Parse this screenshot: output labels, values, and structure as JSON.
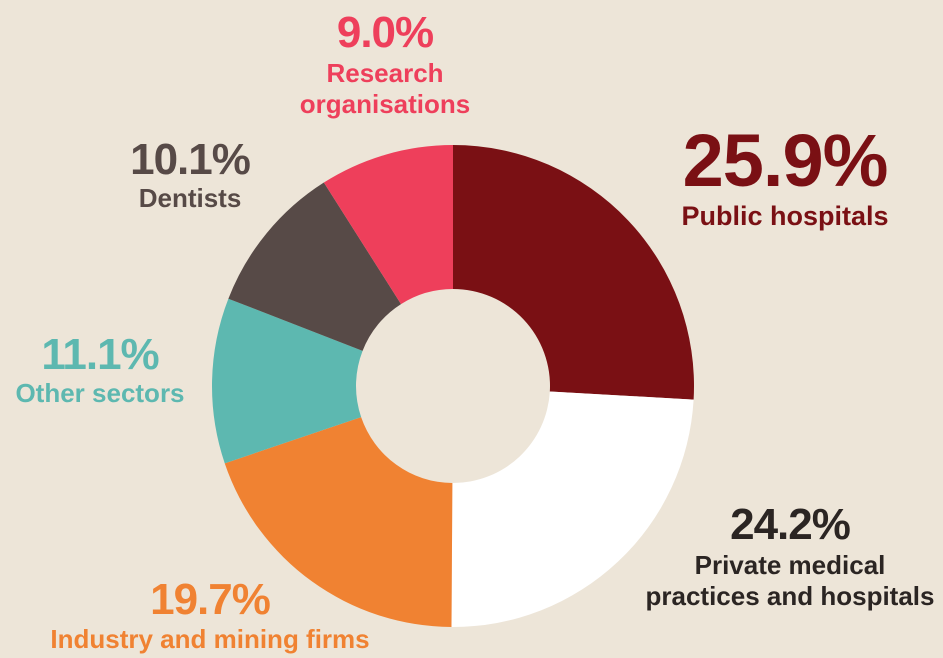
{
  "chart_data": {
    "type": "donut",
    "categories": [
      "Public hospitals",
      "Private medical practices and hospitals",
      "Industry and mining firms",
      "Other sectors",
      "Dentists",
      "Research organisations"
    ],
    "values": [
      25.9,
      24.2,
      19.7,
      11.1,
      10.1,
      9.0
    ],
    "value_labels": [
      "25.9%",
      "24.2%",
      "19.7%",
      "11.1%",
      "10.1%",
      "9.0%"
    ],
    "colors": [
      "#7a1014",
      "#ffffff",
      "#f08232",
      "#5db8b0",
      "#574a47",
      "#ee3f5b"
    ],
    "label_colors": [
      "#7a1014",
      "#2b2523",
      "#f08232",
      "#5db8b0",
      "#574a47",
      "#ee3f5b"
    ]
  }
}
